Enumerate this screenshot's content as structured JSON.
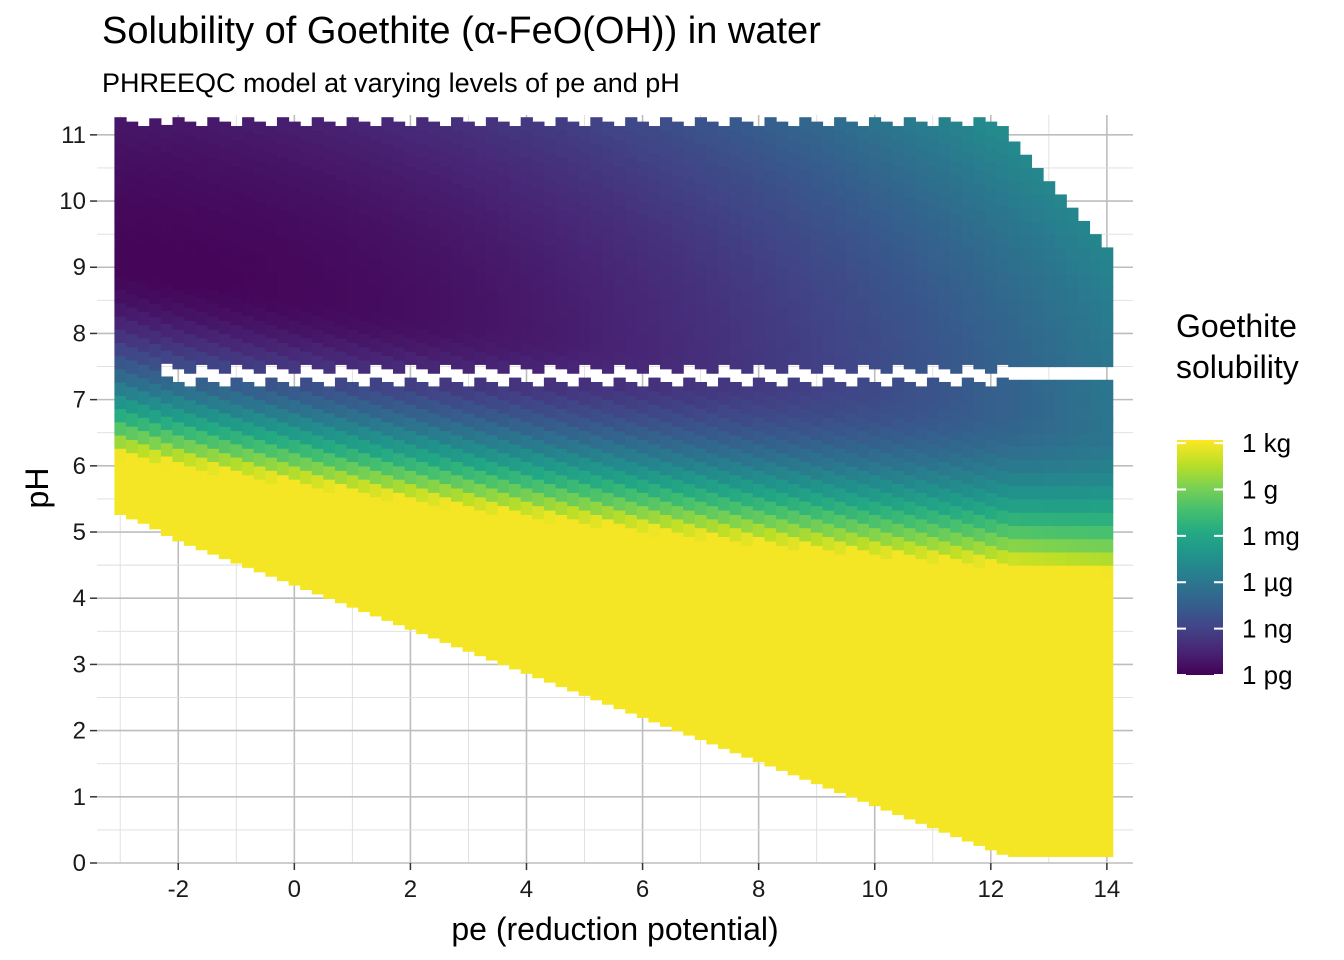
{
  "chart_data": {
    "type": "heatmap",
    "title": "Solubility of Goethite (α-FeO(OH)) in water",
    "subtitle": "PHREEQC model at varying levels of pe and pH",
    "xlabel": "pe (reduction potential)",
    "ylabel": "pH",
    "xlim": [
      -3.4,
      14.45
    ],
    "ylim": [
      0,
      11.3
    ],
    "x_ticks": [
      "-2",
      "0",
      "2",
      "4",
      "6",
      "8",
      "10",
      "12",
      "14"
    ],
    "y_ticks": [
      "0",
      "1",
      "2",
      "3",
      "4",
      "5",
      "6",
      "7",
      "8",
      "9",
      "10",
      "11"
    ],
    "grid": true,
    "grid_step": {
      "x": 1,
      "y": 0.5
    },
    "cell_size": {
      "pe": 0.2,
      "pH": 0.2
    },
    "domain": {
      "pe_range": [
        -3.1,
        14.1
      ],
      "pH_max": 11.1,
      "lower_boundary_pe": [
        -3.1,
        -2.5,
        -2.1,
        -1.5,
        -0.9,
        -0.3,
        0.3,
        0.9,
        1.5,
        2.1,
        2.7,
        3.3,
        3.9,
        4.5,
        5.1,
        5.7,
        6.3,
        6.9,
        7.5,
        8.1,
        8.7,
        9.3,
        9.9,
        10.5,
        11.1,
        11.7,
        12.3,
        12.5
      ],
      "lower_boundary_pH": [
        5.3,
        5.1,
        4.9,
        4.7,
        4.5,
        4.3,
        4.1,
        3.9,
        3.7,
        3.5,
        3.3,
        3.1,
        2.9,
        2.7,
        2.5,
        2.3,
        2.1,
        1.9,
        1.7,
        1.5,
        1.3,
        1.1,
        0.9,
        0.7,
        0.5,
        0.3,
        0.1,
        0.1
      ],
      "upper_right_boundary_pe": [
        12.1,
        12.3,
        12.5,
        12.7,
        12.9,
        13.1,
        13.3,
        13.5,
        13.7,
        13.9,
        14.1
      ],
      "upper_right_boundary_pH": [
        11.1,
        10.9,
        10.7,
        10.5,
        10.3,
        10.1,
        9.9,
        9.7,
        9.5,
        9.3,
        9.3
      ],
      "gap_pe": [
        -2.3,
        14.1
      ],
      "gap_pH": [
        7.3,
        7.5
      ]
    },
    "fill_model": "log10_mass_units_per_litre",
    "color_scale": "viridis",
    "colorbar": {
      "title": "Goethite\nsolubility",
      "title_lines": [
        "Goethite",
        "solubility"
      ],
      "labels": [
        "1 kg",
        "1 g",
        "1 mg",
        "1 µg",
        "1 ng",
        "1 pg"
      ],
      "values_log10_g": [
        3,
        0,
        -3,
        -6,
        -9,
        -12
      ],
      "limits_log10_g": [
        -12,
        3.2
      ]
    },
    "legend_placement": "right"
  }
}
